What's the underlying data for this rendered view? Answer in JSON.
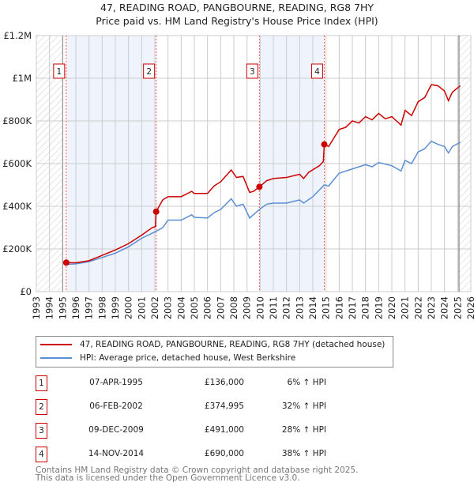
{
  "chart_data": {
    "type": "line",
    "title": "47, READING ROAD, PANGBOURNE, READING, RG8 7HY",
    "subtitle": "Price paid vs. HM Land Registry's House Price Index (HPI)",
    "xlim": [
      1993,
      2026
    ],
    "ylim": [
      0,
      1200000
    ],
    "x_ticks": [
      "1993",
      "1994",
      "1995",
      "1996",
      "1997",
      "1998",
      "1999",
      "2000",
      "2001",
      "2002",
      "2003",
      "2004",
      "2005",
      "2006",
      "2007",
      "2008",
      "2009",
      "2010",
      "2011",
      "2012",
      "2013",
      "2014",
      "2015",
      "2016",
      "2017",
      "2018",
      "2019",
      "2020",
      "2021",
      "2022",
      "2023",
      "2024",
      "2025",
      "2026"
    ],
    "y_ticks": [
      {
        "v": 0,
        "label": "£0"
      },
      {
        "v": 200000,
        "label": "£200K"
      },
      {
        "v": 400000,
        "label": "£400K"
      },
      {
        "v": 600000,
        "label": "£600K"
      },
      {
        "v": 800000,
        "label": "£800K"
      },
      {
        "v": 1000000,
        "label": "£1M"
      },
      {
        "v": 1200000,
        "label": "£1.2M"
      }
    ],
    "grid": true,
    "hatched_ranges": [
      [
        1993,
        1995
      ],
      [
        2025.1,
        2026
      ]
    ],
    "shaded_ranges": [
      [
        1995.27,
        2002.1
      ],
      [
        2009.94,
        2014.87
      ]
    ],
    "series": [
      {
        "name": "47, READING ROAD, PANGBOURNE, READING, RG8 7HY (detached house)",
        "color": "#cc0000",
        "x": [
          1995.27,
          1996,
          1997,
          1998,
          1999,
          2000,
          2001,
          2001.8,
          2002.05,
          2002.1,
          2002.6,
          2003,
          2004,
          2004.8,
          2005,
          2006,
          2006.5,
          2007,
          2007.8,
          2008.2,
          2008.7,
          2009.2,
          2009.5,
          2009.94,
          2010.5,
          2011,
          2012,
          2013,
          2013.3,
          2013.7,
          2014.5,
          2014.8,
          2014.87,
          2015.2,
          2016,
          2016.5,
          2017,
          2017.5,
          2018,
          2018.5,
          2019,
          2019.5,
          2020,
          2020.7,
          2021,
          2021.5,
          2022,
          2022.5,
          2023,
          2023.5,
          2024,
          2024.3,
          2024.6,
          2025.2
        ],
        "y": [
          136000,
          135000,
          145000,
          170000,
          195000,
          225000,
          265000,
          300000,
          305000,
          374995,
          430000,
          445000,
          445000,
          470000,
          460000,
          460000,
          495000,
          515000,
          570000,
          535000,
          540000,
          465000,
          470000,
          491000,
          520000,
          530000,
          535000,
          550000,
          530000,
          560000,
          590000,
          610000,
          690000,
          680000,
          760000,
          770000,
          800000,
          790000,
          820000,
          805000,
          835000,
          810000,
          820000,
          780000,
          850000,
          825000,
          890000,
          910000,
          970000,
          965000,
          940000,
          895000,
          935000,
          965000
        ]
      },
      {
        "name": "HPI: Average price, detached house, West Berkshire",
        "color": "#5b8fd4",
        "x": [
          1995.27,
          1996,
          1997,
          1998,
          1999,
          2000,
          2001,
          2002,
          2002.6,
          2003,
          2004,
          2004.8,
          2005,
          2006,
          2006.5,
          2007,
          2007.8,
          2008.2,
          2008.7,
          2009.2,
          2009.94,
          2010.5,
          2011,
          2012,
          2013,
          2013.3,
          2014,
          2014.87,
          2015.2,
          2016,
          2017,
          2018,
          2018.5,
          2019,
          2020,
          2020.7,
          2021,
          2021.5,
          2022,
          2022.5,
          2023,
          2023.5,
          2024,
          2024.3,
          2024.6,
          2025.2
        ],
        "y": [
          128000,
          130000,
          140000,
          160000,
          180000,
          210000,
          250000,
          280000,
          300000,
          335000,
          335000,
          360000,
          348000,
          345000,
          370000,
          385000,
          435000,
          400000,
          410000,
          345000,
          385000,
          410000,
          415000,
          415000,
          430000,
          415000,
          445000,
          500000,
          495000,
          555000,
          575000,
          595000,
          585000,
          605000,
          590000,
          565000,
          615000,
          600000,
          655000,
          670000,
          705000,
          690000,
          680000,
          650000,
          680000,
          700000
        ]
      }
    ],
    "sales": [
      {
        "n": "1",
        "x": 1995.27,
        "y": 136000
      },
      {
        "n": "2",
        "x": 2002.1,
        "y": 374995
      },
      {
        "n": "3",
        "x": 2009.94,
        "y": 491000
      },
      {
        "n": "4",
        "x": 2014.87,
        "y": 690000
      }
    ],
    "legend_placement": "below"
  },
  "title_line1": "47, READING ROAD, PANGBOURNE, READING, RG8 7HY",
  "title_line2": "Price paid vs. HM Land Registry's House Price Index (HPI)",
  "legend": {
    "red": "47, READING ROAD, PANGBOURNE, READING, RG8 7HY (detached house)",
    "blue": "HPI: Average price, detached house, West Berkshire"
  },
  "transactions": [
    {
      "n": "1",
      "date": "07-APR-1995",
      "price": "£136,000",
      "hpi": "6% ↑ HPI"
    },
    {
      "n": "2",
      "date": "06-FEB-2002",
      "price": "£374,995",
      "hpi": "32% ↑ HPI"
    },
    {
      "n": "3",
      "date": "09-DEC-2009",
      "price": "£491,000",
      "hpi": "28% ↑ HPI"
    },
    {
      "n": "4",
      "date": "14-NOV-2014",
      "price": "£690,000",
      "hpi": "38% ↑ HPI"
    }
  ],
  "footer1": "Contains HM Land Registry data © Crown copyright and database right 2025.",
  "footer2": "This data is licensed under the Open Government Licence v3.0."
}
